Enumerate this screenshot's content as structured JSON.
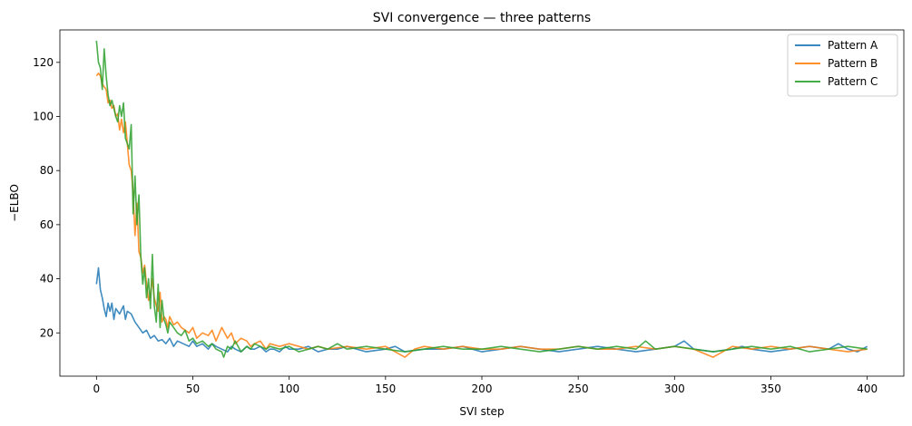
{
  "chart_data": {
    "type": "line",
    "title": "SVI convergence — three patterns",
    "xlabel": "SVI step",
    "ylabel": "−ELBO",
    "xlim": [
      -19,
      419
    ],
    "ylim": [
      4,
      132
    ],
    "xticks": [
      0,
      50,
      100,
      150,
      200,
      250,
      300,
      350,
      400
    ],
    "yticks": [
      20,
      40,
      60,
      80,
      100,
      120
    ],
    "grid": false,
    "legend": "top-right",
    "series": [
      {
        "name": "Pattern A",
        "color": "#1f77b4",
        "x": [
          0,
          1,
          2,
          3,
          4,
          5,
          6,
          7,
          8,
          9,
          10,
          12,
          14,
          15,
          16,
          18,
          20,
          22,
          24,
          26,
          28,
          30,
          32,
          34,
          36,
          38,
          40,
          42,
          45,
          48,
          50,
          52,
          55,
          58,
          60,
          62,
          65,
          68,
          70,
          72,
          75,
          78,
          80,
          82,
          85,
          88,
          90,
          92,
          95,
          98,
          100,
          105,
          110,
          115,
          120,
          125,
          130,
          140,
          150,
          155,
          160,
          170,
          180,
          190,
          200,
          210,
          220,
          230,
          240,
          250,
          260,
          270,
          280,
          290,
          300,
          305,
          310,
          320,
          330,
          335,
          340,
          350,
          360,
          370,
          380,
          385,
          390,
          395,
          400
        ],
        "y": [
          38,
          44,
          36,
          33,
          29,
          26,
          31,
          28,
          31,
          25,
          29,
          27,
          30,
          25,
          28,
          27,
          24,
          22,
          20,
          21,
          18,
          19,
          17,
          17.5,
          16,
          18,
          15,
          17,
          16,
          15,
          17,
          15,
          16,
          14,
          16,
          15,
          14,
          13,
          15,
          14,
          13,
          15,
          14,
          14,
          15,
          13,
          14,
          14,
          13,
          15,
          14,
          14,
          15,
          13,
          14,
          14,
          15,
          13,
          14,
          15,
          13,
          14,
          14,
          15,
          13,
          14,
          15,
          14,
          13,
          14,
          15,
          14,
          13,
          14,
          15,
          17,
          14,
          13,
          14,
          15,
          14,
          13,
          14,
          15,
          14,
          16,
          14,
          13,
          15
        ]
      },
      {
        "name": "Pattern B",
        "color": "#ff7f0e",
        "x": [
          0,
          1,
          2,
          3,
          4,
          5,
          6,
          7,
          8,
          9,
          10,
          11,
          12,
          13,
          14,
          15,
          16,
          17,
          18,
          19,
          20,
          21,
          22,
          23,
          24,
          25,
          26,
          27,
          28,
          29,
          30,
          31,
          32,
          33,
          34,
          35,
          36,
          37,
          38,
          40,
          42,
          44,
          46,
          48,
          50,
          52,
          55,
          58,
          60,
          62,
          65,
          68,
          70,
          72,
          75,
          78,
          80,
          82,
          85,
          88,
          90,
          95,
          100,
          105,
          110,
          115,
          120,
          130,
          140,
          150,
          160,
          165,
          170,
          180,
          190,
          200,
          210,
          220,
          230,
          240,
          250,
          260,
          270,
          280,
          290,
          300,
          310,
          320,
          330,
          340,
          350,
          360,
          370,
          380,
          390,
          400
        ],
        "y": [
          115,
          116,
          115,
          112,
          111,
          110,
          105,
          106,
          103,
          104,
          100,
          101,
          95,
          99,
          94,
          98,
          90,
          82,
          80,
          72,
          56,
          68,
          50,
          48,
          42,
          45,
          38,
          32,
          34,
          40,
          33,
          30,
          28,
          35,
          24,
          26,
          25,
          22,
          26,
          23,
          24,
          22,
          21,
          20,
          22,
          18,
          20,
          19,
          21,
          17,
          22,
          18,
          20,
          16,
          18,
          17,
          15,
          16,
          17,
          14,
          16,
          15,
          16,
          15,
          14,
          15,
          14,
          15,
          14,
          15,
          11,
          14,
          15,
          14,
          15,
          14,
          14,
          15,
          14,
          14,
          15,
          14,
          14,
          15,
          14,
          15,
          14,
          11,
          15,
          14,
          15,
          14,
          15,
          14,
          13,
          14
        ]
      },
      {
        "name": "Pattern C",
        "color": "#2ca02c",
        "x": [
          0,
          1,
          2,
          3,
          4,
          5,
          6,
          7,
          8,
          9,
          10,
          11,
          12,
          13,
          14,
          15,
          16,
          17,
          18,
          19,
          20,
          21,
          22,
          23,
          24,
          25,
          26,
          27,
          28,
          29,
          30,
          31,
          32,
          33,
          34,
          35,
          36,
          37,
          38,
          40,
          42,
          44,
          46,
          48,
          50,
          52,
          55,
          58,
          60,
          62,
          65,
          66,
          68,
          70,
          72,
          75,
          78,
          80,
          82,
          85,
          88,
          90,
          95,
          100,
          105,
          110,
          115,
          120,
          125,
          130,
          140,
          150,
          160,
          170,
          180,
          190,
          200,
          210,
          220,
          230,
          240,
          250,
          260,
          270,
          280,
          285,
          290,
          300,
          310,
          320,
          330,
          340,
          350,
          360,
          370,
          380,
          390,
          400
        ],
        "y": [
          128,
          120,
          118,
          110,
          125,
          115,
          108,
          104,
          106,
          103,
          100,
          98,
          104,
          100,
          105,
          92,
          90,
          88,
          97,
          64,
          78,
          60,
          71,
          48,
          38,
          44,
          33,
          40,
          29,
          49,
          30,
          24,
          38,
          22,
          32,
          25,
          23,
          20,
          24,
          22,
          20,
          19,
          21,
          17,
          18,
          16,
          17,
          15,
          16,
          14,
          13,
          11,
          15,
          14,
          17,
          13,
          15,
          14,
          16,
          15,
          14,
          15,
          14,
          15,
          13,
          14,
          15,
          14,
          16,
          14,
          15,
          14,
          13,
          14,
          15,
          14,
          14,
          15,
          14,
          13,
          14,
          15,
          14,
          15,
          14,
          17,
          14,
          15,
          14,
          13,
          14,
          15,
          14,
          15,
          13,
          14,
          15,
          14
        ]
      }
    ]
  }
}
